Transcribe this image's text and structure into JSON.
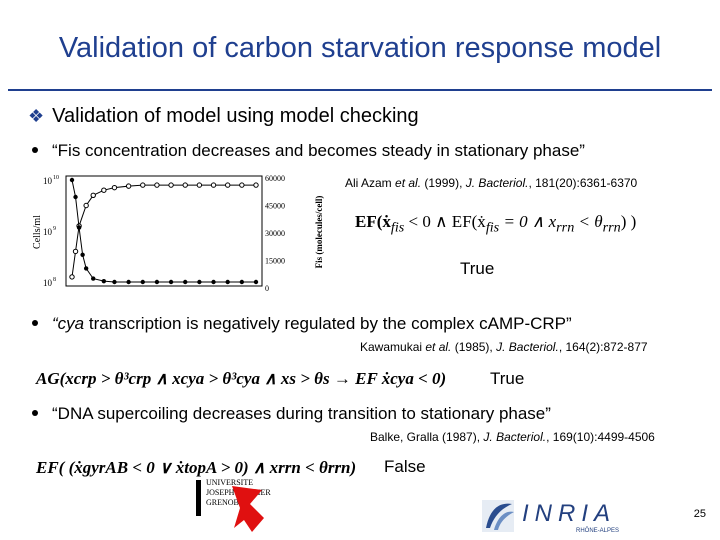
{
  "slide": {
    "title": "Validation of carbon starvation response model",
    "main_bullet": "Validation of model using model checking",
    "page_number": "25"
  },
  "items": [
    {
      "quote": "“Fis concentration decreases and becomes steady in stationary phase”",
      "ref_authors": "Ali Azam",
      "ref_etal": "et al.",
      "ref_year": "(1999),",
      "ref_journal": "J. Bacteriol.",
      "ref_rest": ", 181(20):6361-6370",
      "formula_1": "EF(ẋ",
      "formula_2": "fis",
      "formula_3": " < 0 ∧ EF(ẋ",
      "formula_4": "fis",
      "formula_5": " = 0 ∧ x",
      "formula_6": "rrn",
      "formula_7": " < θ",
      "formula_8": "rrn",
      "formula_9": ") )",
      "result": "True"
    },
    {
      "quote_italic": "“cya",
      "quote_rest": " transcription is negatively regulated by the complex cAMP-CRP”",
      "ref_authors": "Kawamukai",
      "ref_etal": "et al.",
      "ref_year": "(1985),",
      "ref_journal": "J. Bacteriol.",
      "ref_rest": ", 164(2):872-877",
      "formula": "AG(xcrp > θ³crp ∧ xcya > θ³cya ∧ xs > θs → EF ẋcya < 0)",
      "result": "True"
    },
    {
      "quote": "“DNA supercoiling decreases during transition to stationary phase”",
      "ref_authors": "Balke, Gralla (1987),",
      "ref_journal": "J. Bacteriol.",
      "ref_rest": ", 169(10):4499-4506",
      "formula": "EF( (ẋgyrAB < 0 ∨ ẋtopA > 0) ∧ xrrn < θrrn)",
      "result": "False"
    }
  ],
  "chart_data": {
    "type": "line",
    "ylabel_left": "Cells/ml",
    "ylabel_right": "Fis (molecules/cell)",
    "left_ticks": [
      "10",
      "10",
      "10"
    ],
    "left_tick_exponents": [
      "10",
      "9",
      "8"
    ],
    "right_ticks": [
      "60000",
      "45000",
      "30000",
      "15000",
      "0"
    ],
    "series": [
      {
        "values_x": [
          0,
          1,
          2,
          4,
          6,
          9,
          12,
          16,
          20,
          24,
          28,
          32,
          36,
          40,
          44,
          48,
          52
        ],
        "values_y_log": [
          8.1,
          8.6,
          9.1,
          9.5,
          9.7,
          9.8,
          9.85,
          9.88,
          9.9,
          9.9,
          9.9,
          9.9,
          9.9,
          9.9,
          9.9,
          9.9,
          9.9
        ]
      },
      {
        "values_x": [
          0,
          1,
          2,
          3,
          4,
          6,
          9,
          12,
          16,
          20,
          24,
          28,
          32,
          36,
          40,
          44,
          48,
          52
        ],
        "values_y_fis": [
          60000,
          50000,
          32000,
          16000,
          8000,
          2000,
          500,
          0,
          0,
          0,
          0,
          0,
          0,
          0,
          0,
          0,
          0,
          0
        ]
      }
    ]
  },
  "logos": {
    "university_top": "UNIVERSITE",
    "university_mid": "JOSEPH FOURIER",
    "university_bot": "GRENOBLE",
    "inria": "INRIA",
    "inria_sub": "RHÔNE-ALPES"
  }
}
